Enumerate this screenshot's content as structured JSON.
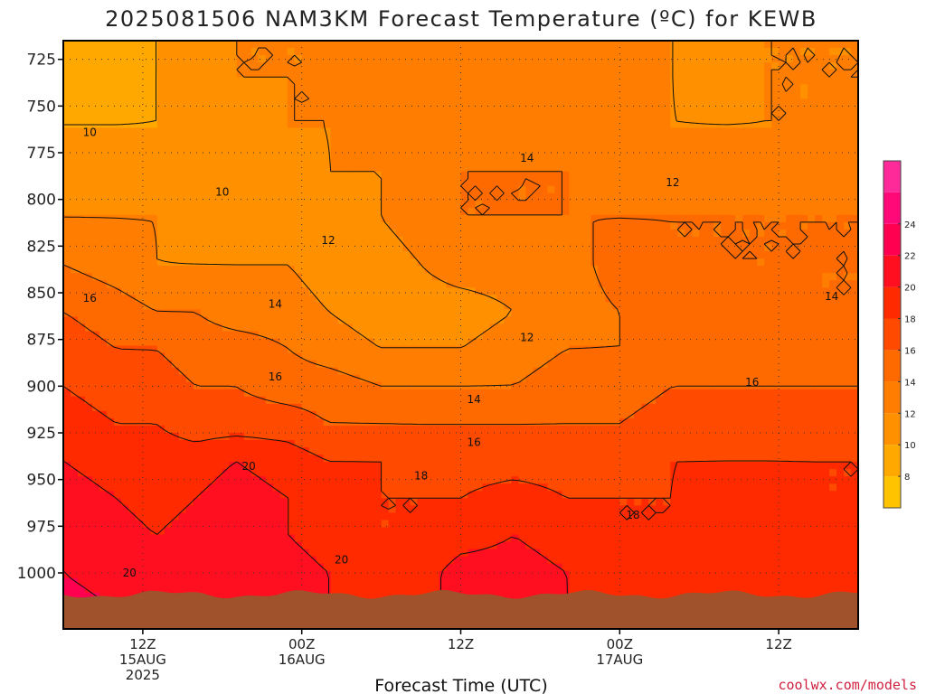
{
  "chart_data": {
    "type": "contour",
    "title": "2025081506 NAM3KM Forecast Temperature (ºC) for KEWB",
    "xlabel": "Forecast Time (UTC)",
    "ylabel": "",
    "credit": "coolwx.com/models",
    "y_axis": {
      "unit": "hPa",
      "inverted": true,
      "ylim": [
        1030,
        715
      ],
      "ticks": [
        725,
        750,
        775,
        800,
        825,
        850,
        875,
        900,
        925,
        950,
        975,
        1000
      ],
      "tick_labels": [
        "725",
        "750",
        "775",
        "800",
        "825",
        "850",
        "875",
        "900",
        "925",
        "950",
        "975",
        "1000"
      ]
    },
    "x_axis": {
      "unit": "forecast hour",
      "xlim": [
        0,
        60
      ],
      "ticks": [
        6,
        18,
        30,
        42,
        54
      ],
      "tick_labels": [
        [
          "12Z",
          "15AUG",
          "2025"
        ],
        [
          "00Z",
          "16AUG"
        ],
        [
          "12Z"
        ],
        [
          "00Z",
          "17AUG"
        ],
        [
          "12Z"
        ]
      ]
    },
    "grid": true,
    "colorbar": {
      "ticks": [
        8,
        10,
        12,
        14,
        16,
        18,
        20,
        22,
        24
      ],
      "levels": [
        6,
        8,
        10,
        12,
        14,
        16,
        18,
        20,
        22,
        24,
        26
      ],
      "colors": [
        "#ffc300",
        "#ffa800",
        "#ff9100",
        "#ff7d00",
        "#ff6a00",
        "#ff4a00",
        "#ff2a00",
        "#ff0f20",
        "#ff0050",
        "#ff0878",
        "#ff2a9a"
      ]
    },
    "ground_color": "#a0522d",
    "temperature_field": {
      "x": [
        0,
        4,
        7,
        10,
        13,
        17,
        20,
        24,
        27,
        30,
        34,
        38,
        42,
        46,
        50,
        53,
        57,
        60
      ],
      "p": [
        720,
        735,
        760,
        785,
        810,
        835,
        860,
        880,
        900,
        920,
        940,
        960,
        980,
        1000,
        1020
      ],
      "values": [
        [
          9,
          9,
          10,
          11,
          12,
          12,
          12,
          12,
          12,
          12,
          12,
          13,
          13,
          12,
          11,
          12,
          12,
          12
        ],
        [
          9,
          9,
          10,
          11,
          12,
          12,
          12,
          13,
          13,
          13,
          13,
          13,
          13,
          12,
          11,
          12,
          12,
          12
        ],
        [
          10,
          10,
          10,
          10,
          11,
          12,
          12,
          13,
          13,
          13,
          13,
          13,
          13,
          12,
          12,
          12,
          12,
          13
        ],
        [
          11,
          11,
          11,
          10,
          10,
          11,
          12,
          12,
          13,
          14,
          14,
          14,
          13,
          13,
          13,
          13,
          13,
          13
        ],
        [
          12,
          12,
          12,
          11,
          11,
          11,
          11,
          12,
          13,
          14,
          14,
          14,
          14,
          14,
          14,
          14,
          14,
          14
        ],
        [
          14,
          13,
          12,
          12,
          12,
          12,
          11,
          11,
          12,
          13,
          13,
          13,
          15,
          14,
          14,
          14,
          14,
          14
        ],
        [
          16,
          15,
          14,
          14,
          13,
          13,
          12,
          11,
          11,
          11,
          12,
          13,
          14,
          14,
          15,
          15,
          14,
          14
        ],
        [
          17,
          16,
          16,
          15,
          15,
          14,
          13,
          12,
          12,
          12,
          13,
          14,
          14,
          15,
          15,
          15,
          15,
          15
        ],
        [
          18,
          17,
          17,
          16,
          16,
          15,
          15,
          14,
          14,
          14,
          14,
          15,
          15,
          16,
          16,
          16,
          16,
          16
        ],
        [
          19,
          18,
          18,
          17,
          17,
          17,
          16,
          16,
          16,
          16,
          16,
          16,
          16,
          17,
          17,
          17,
          17,
          17
        ],
        [
          20,
          19,
          19,
          19,
          20,
          19,
          18,
          18,
          17,
          17,
          17,
          17,
          17,
          18,
          18,
          18,
          18,
          18
        ],
        [
          21,
          20,
          19,
          20,
          21,
          20,
          19,
          18,
          18,
          18,
          19,
          18,
          18,
          18,
          19,
          19,
          18,
          18
        ],
        [
          22,
          21,
          20,
          21,
          21,
          20,
          19,
          18,
          18,
          19,
          20,
          19,
          18,
          18,
          19,
          19,
          19,
          19
        ],
        [
          22,
          21,
          20,
          21,
          22,
          21,
          20,
          19,
          19,
          21,
          21,
          20,
          19,
          19,
          19,
          19,
          19,
          20
        ],
        [
          23,
          22,
          21,
          22,
          22,
          21,
          20,
          19,
          19,
          21,
          22,
          20,
          19,
          19,
          20,
          20,
          20,
          20
        ]
      ]
    },
    "contour_labels": [
      {
        "text": "10",
        "x": 2.0,
        "p": 764
      },
      {
        "text": "10",
        "x": 12.0,
        "p": 796
      },
      {
        "text": "12",
        "x": 20.0,
        "p": 822
      },
      {
        "text": "14",
        "x": 16.0,
        "p": 856
      },
      {
        "text": "16",
        "x": 2.0,
        "p": 853
      },
      {
        "text": "16",
        "x": 16.0,
        "p": 895
      },
      {
        "text": "14",
        "x": 35.0,
        "p": 778
      },
      {
        "text": "12",
        "x": 46.0,
        "p": 791
      },
      {
        "text": "12",
        "x": 35.0,
        "p": 874
      },
      {
        "text": "14",
        "x": 31.0,
        "p": 907
      },
      {
        "text": "16",
        "x": 31.0,
        "p": 930
      },
      {
        "text": "18",
        "x": 27.0,
        "p": 948
      },
      {
        "text": "16",
        "x": 52.0,
        "p": 898
      },
      {
        "text": "14",
        "x": 58.0,
        "p": 852
      },
      {
        "text": "18",
        "x": 43.0,
        "p": 969
      },
      {
        "text": "20",
        "x": 14.0,
        "p": 943
      },
      {
        "text": "20",
        "x": 21.0,
        "p": 993
      },
      {
        "text": "20",
        "x": 5.0,
        "p": 1000
      }
    ]
  }
}
